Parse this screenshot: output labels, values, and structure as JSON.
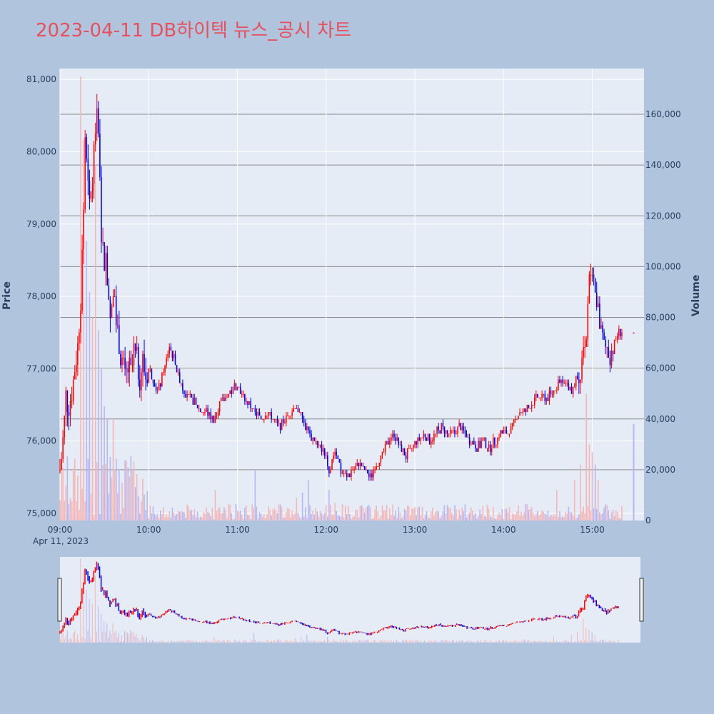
{
  "title": "2023-04-11 DB하이텍 뉴스_공시 차트",
  "colors": {
    "background": "#b0c4de",
    "plot_bg": "#e5ecf6",
    "title": "#e8505b",
    "up": "#ff0000",
    "down": "#0000ff",
    "volume_up": "#f4b6b6",
    "volume_down": "#b6b6f4",
    "volume_grid": "#8c8c8c"
  },
  "chart_data": {
    "type": "candlestick",
    "title": "2023-04-11 DB하이텍 뉴스_공시 차트",
    "date_label": "Apr 11, 2023",
    "y_price": {
      "label": "Price",
      "range": [
        74900,
        81150
      ],
      "ticks": [
        75000,
        76000,
        77000,
        78000,
        79000,
        80000,
        81000
      ],
      "tick_labels": [
        "75,000",
        "76,000",
        "77,000",
        "78,000",
        "79,000",
        "80,000",
        "81,000"
      ]
    },
    "y_volume": {
      "label": "Volume",
      "range": [
        0,
        178000
      ],
      "ticks": [
        0,
        20000,
        40000,
        60000,
        80000,
        100000,
        120000,
        140000,
        160000
      ],
      "tick_labels": [
        "0",
        "20,000",
        "40,000",
        "60,000",
        "80,000",
        "100,000",
        "120,000",
        "140,000",
        "160,000"
      ]
    },
    "x_axis": {
      "range_minutes": [
        540,
        935
      ],
      "ticks": [
        540,
        600,
        660,
        720,
        780,
        840,
        900
      ],
      "tick_labels": [
        "09:00",
        "10:00",
        "11:00",
        "12:00",
        "13:00",
        "14:00",
        "15:00"
      ]
    },
    "grid": true,
    "rangeslider": true,
    "price_path": [
      [
        540,
        75600
      ],
      [
        542,
        76000
      ],
      [
        544,
        76600
      ],
      [
        546,
        76500
      ],
      [
        548,
        76700
      ],
      [
        552,
        77300
      ],
      [
        554,
        78000
      ],
      [
        556,
        79200
      ],
      [
        557,
        80200
      ],
      [
        558,
        79800
      ],
      [
        560,
        79200
      ],
      [
        562,
        79700
      ],
      [
        564,
        80300
      ],
      [
        565,
        80800
      ],
      [
        566,
        80200
      ],
      [
        567,
        79500
      ],
      [
        568,
        78900
      ],
      [
        570,
        78500
      ],
      [
        571,
        78800
      ],
      [
        572,
        78300
      ],
      [
        574,
        77800
      ],
      [
        576,
        78200
      ],
      [
        577,
        78000
      ],
      [
        578,
        77600
      ],
      [
        580,
        77400
      ],
      [
        582,
        77100
      ],
      [
        584,
        76800
      ],
      [
        586,
        77000
      ],
      [
        588,
        76900
      ],
      [
        590,
        77200
      ],
      [
        592,
        77100
      ],
      [
        594,
        76900
      ],
      [
        596,
        77100
      ],
      [
        598,
        76900
      ],
      [
        600,
        77000
      ],
      [
        602,
        76900
      ],
      [
        604,
        76800
      ],
      [
        606,
        76700
      ],
      [
        608,
        76800
      ],
      [
        610,
        77000
      ],
      [
        612,
        77100
      ],
      [
        614,
        77300
      ],
      [
        616,
        77200
      ],
      [
        618,
        77100
      ],
      [
        620,
        76900
      ],
      [
        624,
        76700
      ],
      [
        628,
        76600
      ],
      [
        632,
        76500
      ],
      [
        636,
        76400
      ],
      [
        640,
        76400
      ],
      [
        644,
        76300
      ],
      [
        648,
        76500
      ],
      [
        652,
        76600
      ],
      [
        656,
        76700
      ],
      [
        660,
        76800
      ],
      [
        664,
        76600
      ],
      [
        668,
        76500
      ],
      [
        672,
        76400
      ],
      [
        676,
        76300
      ],
      [
        680,
        76400
      ],
      [
        684,
        76300
      ],
      [
        688,
        76200
      ],
      [
        692,
        76300
      ],
      [
        696,
        76400
      ],
      [
        700,
        76500
      ],
      [
        704,
        76300
      ],
      [
        708,
        76100
      ],
      [
        712,
        76000
      ],
      [
        716,
        75900
      ],
      [
        720,
        75800
      ],
      [
        722,
        75600
      ],
      [
        724,
        75700
      ],
      [
        726,
        75900
      ],
      [
        728,
        75800
      ],
      [
        730,
        75600
      ],
      [
        734,
        75500
      ],
      [
        738,
        75600
      ],
      [
        742,
        75700
      ],
      [
        746,
        75600
      ],
      [
        750,
        75500
      ],
      [
        754,
        75700
      ],
      [
        758,
        75800
      ],
      [
        762,
        76000
      ],
      [
        766,
        76100
      ],
      [
        770,
        75900
      ],
      [
        774,
        75800
      ],
      [
        778,
        75900
      ],
      [
        782,
        76000
      ],
      [
        786,
        76100
      ],
      [
        790,
        76000
      ],
      [
        794,
        76100
      ],
      [
        798,
        76200
      ],
      [
        802,
        76100
      ],
      [
        806,
        76100
      ],
      [
        810,
        76200
      ],
      [
        814,
        76100
      ],
      [
        818,
        76000
      ],
      [
        822,
        75900
      ],
      [
        826,
        76000
      ],
      [
        830,
        75900
      ],
      [
        834,
        76000
      ],
      [
        838,
        76100
      ],
      [
        842,
        76100
      ],
      [
        846,
        76200
      ],
      [
        850,
        76400
      ],
      [
        854,
        76400
      ],
      [
        858,
        76500
      ],
      [
        862,
        76600
      ],
      [
        866,
        76600
      ],
      [
        870,
        76600
      ],
      [
        874,
        76700
      ],
      [
        878,
        76800
      ],
      [
        882,
        76800
      ],
      [
        886,
        76700
      ],
      [
        890,
        76900
      ],
      [
        892,
        77000
      ],
      [
        894,
        77300
      ],
      [
        896,
        77500
      ],
      [
        898,
        78200
      ],
      [
        900,
        78300
      ],
      [
        902,
        78100
      ],
      [
        904,
        77800
      ],
      [
        906,
        77500
      ],
      [
        908,
        77300
      ],
      [
        910,
        77300
      ],
      [
        912,
        77200
      ],
      [
        914,
        77300
      ],
      [
        916,
        77400
      ],
      [
        918,
        77500
      ],
      [
        928,
        77500
      ]
    ],
    "volume_spikes": [
      [
        554,
        175000
      ],
      [
        556,
        150000
      ],
      [
        558,
        110000
      ],
      [
        560,
        90000
      ],
      [
        562,
        80000
      ],
      [
        564,
        140000
      ],
      [
        566,
        75000
      ],
      [
        568,
        60000
      ],
      [
        570,
        45000
      ],
      [
        572,
        40000
      ],
      [
        574,
        25000
      ],
      [
        576,
        40000
      ],
      [
        580,
        20000
      ],
      [
        645,
        12000
      ],
      [
        672,
        20000
      ],
      [
        700,
        9000
      ],
      [
        704,
        11000
      ],
      [
        708,
        16000
      ],
      [
        722,
        12000
      ],
      [
        726,
        7000
      ],
      [
        876,
        12000
      ],
      [
        888,
        16000
      ],
      [
        892,
        22000
      ],
      [
        896,
        50000
      ],
      [
        898,
        30000
      ],
      [
        900,
        27000
      ],
      [
        902,
        22000
      ],
      [
        904,
        16000
      ]
    ]
  }
}
